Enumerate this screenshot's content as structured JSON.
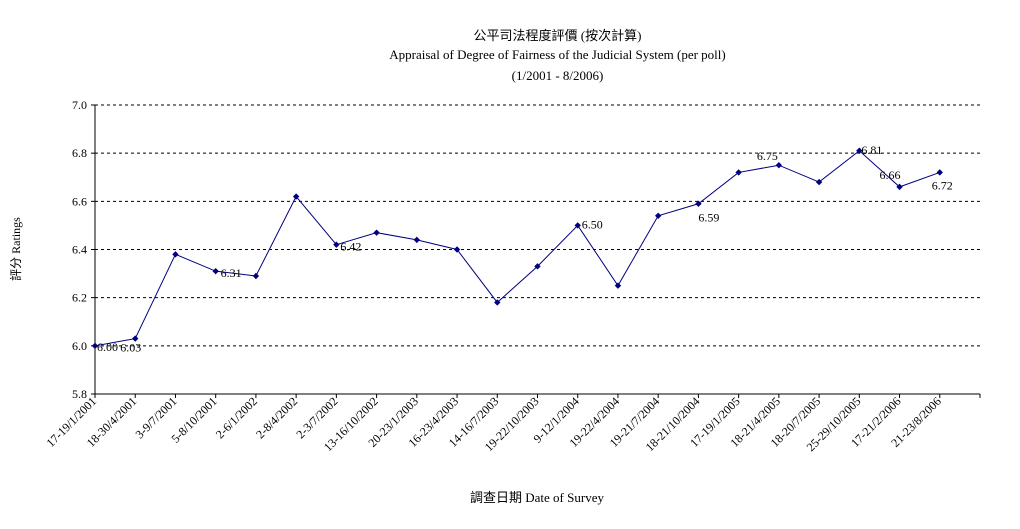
{
  "chart_data": {
    "type": "line",
    "title": "公平司法程度評價 (按次計算)",
    "subtitle": "Appraisal of Degree of Fairness of the Judicial System (per poll)",
    "period": "(1/2001 - 8/2006)",
    "xlabel": "調查日期 Date of Survey",
    "ylabel": "評分 Ratings",
    "ylim": [
      5.8,
      7.0
    ],
    "yticks": [
      "5.8",
      "6.0",
      "6.2",
      "6.4",
      "6.6",
      "6.8",
      "7.0"
    ],
    "grid": "horizontal dashed",
    "color": "#000080",
    "categories": [
      "17-19/1/2001",
      "18-30/4/2001",
      "3-9/7/2001",
      "5-8/10/2001",
      "2-6/1/2002",
      "2-8/4/2002",
      "2-3/7/2002",
      "13-16/10/2002",
      "20-23/1/2003",
      "16-23/4/2003",
      "14-16/7/2003",
      "19-22/10/2003",
      "9-12/1/2004",
      "19-22/4/2004",
      "19-21/7/2004",
      "18-21/10/2004",
      "17-19/1/2005",
      "18-21/4/2005",
      "18-20/7/2005",
      "25-29/10/2005",
      "17-21/2/2006",
      "21-23/8/2006"
    ],
    "points": [
      {
        "label": "",
        "value": 6.0
      },
      {
        "label": "",
        "value": 6.03
      },
      {
        "label": "",
        "value": 6.38
      },
      {
        "label": "",
        "value": 6.31
      },
      {
        "label": "",
        "value": 6.29
      },
      {
        "label": "",
        "value": 6.62
      },
      {
        "label": "",
        "value": 6.42
      },
      {
        "label": "",
        "value": 6.47
      },
      {
        "label": "",
        "value": 6.44
      },
      {
        "label": "",
        "value": 6.4
      },
      {
        "label": "",
        "value": 6.18
      },
      {
        "label": "",
        "value": 6.33
      },
      {
        "label": "",
        "value": 6.5
      },
      {
        "label": "",
        "value": 6.25
      },
      {
        "label": "",
        "value": 6.54
      },
      {
        "label": "",
        "value": 6.59
      },
      {
        "label": "",
        "value": 6.72
      },
      {
        "label": "",
        "value": 6.75
      },
      {
        "label": "",
        "value": 6.68
      },
      {
        "label": "",
        "value": 6.81
      },
      {
        "label": "",
        "value": 6.66
      },
      {
        "label": "",
        "value": 6.72
      }
    ],
    "data_labels": [
      {
        "index": 0,
        "text": "6.00"
      },
      {
        "index": 1,
        "text": "6.03"
      },
      {
        "index": 3,
        "text": "6.31"
      },
      {
        "index": 6,
        "text": "6.42"
      },
      {
        "index": 12,
        "text": "6.50"
      },
      {
        "index": 15,
        "text": "6.59"
      },
      {
        "index": 17,
        "text": "6.75"
      },
      {
        "index": 19,
        "text": "6.81"
      },
      {
        "index": 20,
        "text": "6.66"
      },
      {
        "index": 21,
        "text": "6.72"
      }
    ]
  }
}
